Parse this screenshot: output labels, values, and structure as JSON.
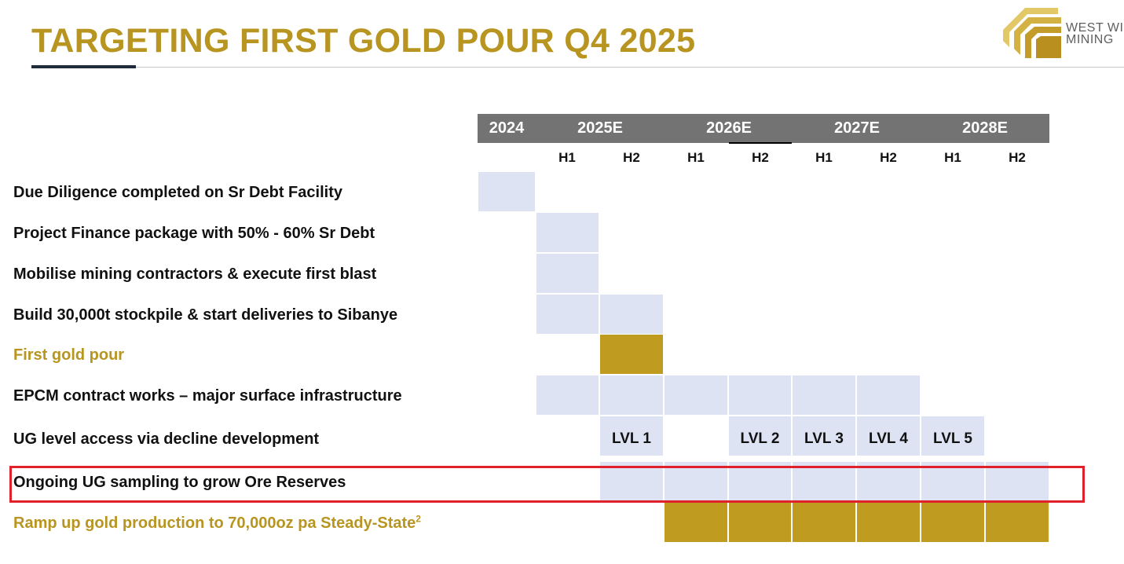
{
  "header": {
    "title": "TARGETING FIRST GOLD POUR Q4 2025",
    "logo": {
      "line1": "WEST WI",
      "line2": "MINING",
      "icon": "west-wits-logo-icon"
    }
  },
  "colors": {
    "accent_gold": "#bf9b20",
    "title_gold": "#b89521",
    "bar_light": "#dde3f2",
    "header_grey": "#737373",
    "highlight_red": "#e0202a"
  },
  "timeline": {
    "years": [
      "2024",
      "2025E",
      "2026E",
      "2027E",
      "2028E"
    ],
    "halves": [
      "H1",
      "H2",
      "H1",
      "H2",
      "H1",
      "H2",
      "H1",
      "H2"
    ]
  },
  "tasks": [
    {
      "label": "Due Diligence completed on Sr Debt Facility",
      "style": "normal",
      "periods": [
        "2024"
      ]
    },
    {
      "label": "Project Finance package with 50% - 60% Sr Debt",
      "style": "normal",
      "periods": [
        "2025E H1"
      ]
    },
    {
      "label": "Mobilise mining contractors & execute first blast",
      "style": "normal",
      "periods": [
        "2025E H1"
      ]
    },
    {
      "label": "Build 30,000t stockpile & start deliveries to Sibanye",
      "style": "normal",
      "periods": [
        "2025E H1",
        "2025E H2"
      ]
    },
    {
      "label": "First gold pour",
      "style": "gold",
      "periods": [
        "2025E H2"
      ]
    },
    {
      "label": "EPCM contract works – major surface infrastructure",
      "style": "normal",
      "periods": [
        "2025E H1",
        "2025E H2",
        "2026E H1",
        "2026E H2",
        "2027E H1",
        "2027E H2"
      ]
    },
    {
      "label": "UG level access via decline development",
      "style": "normal",
      "levels": [
        {
          "period": "2025E H2",
          "text": "LVL 1"
        },
        {
          "period": "2026E H2",
          "text": "LVL 2"
        },
        {
          "period": "2027E H1",
          "text": "LVL 3"
        },
        {
          "period": "2027E H2",
          "text": "LVL 4"
        },
        {
          "period": "2028E H1",
          "text": "LVL 5"
        }
      ]
    },
    {
      "label": "Ongoing UG sampling to grow Ore Reserves",
      "style": "normal",
      "highlighted": true,
      "periods": [
        "2025E H2",
        "2026E H1",
        "2026E H2",
        "2027E H1",
        "2027E H2",
        "2028E H1",
        "2028E H2"
      ]
    },
    {
      "label": "Ramp up gold production to 70,000oz pa Steady-State",
      "footnote": "2",
      "style": "gold",
      "periods": [
        "2026E H1",
        "2026E H2",
        "2027E H1",
        "2027E H2",
        "2028E H1",
        "2028E H2"
      ]
    }
  ]
}
